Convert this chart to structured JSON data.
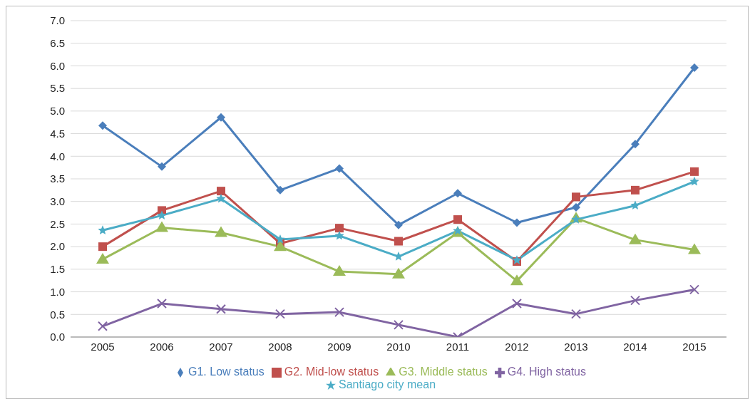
{
  "chart_data": {
    "type": "line",
    "categories": [
      "2005",
      "2006",
      "2007",
      "2008",
      "2009",
      "2010",
      "2011",
      "2012",
      "2013",
      "2014",
      "2015"
    ],
    "ylim": [
      0,
      7
    ],
    "yticks": [
      {
        "value": 0,
        "label": "0.0"
      },
      {
        "value": 0.5,
        "label": "0.5"
      },
      {
        "value": 1,
        "label": "1.0"
      },
      {
        "value": 1.5,
        "label": "1.5"
      },
      {
        "value": 2,
        "label": "2.0"
      },
      {
        "value": 2.5,
        "label": "2.5"
      },
      {
        "value": 3,
        "label": "3.0"
      },
      {
        "value": 3.5,
        "label": "3.5"
      },
      {
        "value": 4,
        "label": "4.0"
      },
      {
        "value": 4.5,
        "label": "4.5"
      },
      {
        "value": 5,
        "label": "5.0"
      },
      {
        "value": 5.5,
        "label": "5.5"
      },
      {
        "value": 6,
        "label": "6.0"
      },
      {
        "value": 6.5,
        "label": "6.5"
      },
      {
        "value": 7,
        "label": "7.0"
      }
    ],
    "grid": "y",
    "legend": "bottom",
    "line_style": "solid",
    "series": [
      {
        "name": "G1. Low status",
        "color": "#4a7ebb",
        "marker": "diamond",
        "values": [
          4.68,
          3.77,
          4.86,
          3.25,
          3.73,
          2.48,
          3.18,
          2.53,
          2.87,
          4.27,
          5.96
        ]
      },
      {
        "name": "G2. Mid-low status",
        "color": "#c0504d",
        "marker": "square",
        "values": [
          2.0,
          2.8,
          3.23,
          2.07,
          2.41,
          2.12,
          2.6,
          1.67,
          3.1,
          3.25,
          3.66
        ]
      },
      {
        "name": "G3. Middle status",
        "color": "#9bbb59",
        "marker": "triangle",
        "values": [
          1.72,
          2.42,
          2.31,
          2.0,
          1.45,
          1.39,
          2.31,
          1.24,
          2.63,
          2.15,
          1.93
        ]
      },
      {
        "name": "G4. High status",
        "color": "#8064a2",
        "marker": "cross",
        "values": [
          0.24,
          0.74,
          0.62,
          0.51,
          0.55,
          0.27,
          0.0,
          0.74,
          0.51,
          0.81,
          1.05
        ]
      },
      {
        "name": "Santiago city mean",
        "color": "#4bacc6",
        "marker": "star",
        "values": [
          2.36,
          2.69,
          3.06,
          2.16,
          2.24,
          1.78,
          2.35,
          1.7,
          2.6,
          2.91,
          3.44
        ]
      }
    ]
  }
}
